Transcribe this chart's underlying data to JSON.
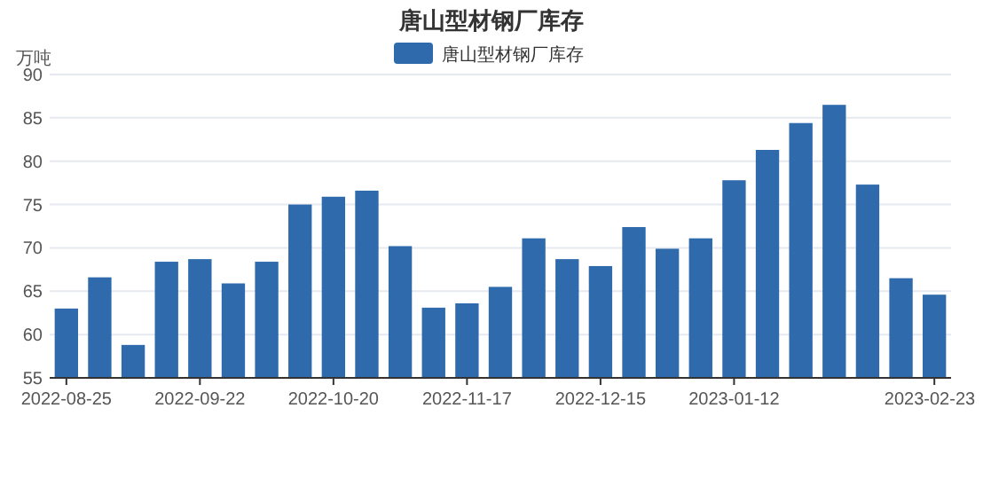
{
  "chart_data": {
    "type": "bar",
    "title": "唐山型材钢厂库存",
    "ylabel": "万吨",
    "categories": [
      "2022-08-25",
      null,
      null,
      null,
      "2022-09-22",
      null,
      null,
      null,
      "2022-10-20",
      null,
      null,
      null,
      "2022-11-17",
      null,
      null,
      null,
      "2022-12-15",
      null,
      null,
      null,
      "2023-01-12",
      null,
      null,
      null,
      null,
      null,
      "2023-02-23"
    ],
    "series": [
      {
        "name": "唐山型材钢厂库存",
        "color": "#2e6aac",
        "values": [
          63.0,
          66.6,
          58.8,
          68.4,
          68.7,
          65.9,
          68.4,
          75.0,
          75.9,
          76.6,
          70.2,
          63.1,
          63.6,
          65.5,
          71.1,
          68.7,
          67.9,
          72.4,
          69.9,
          71.1,
          77.8,
          81.3,
          84.4,
          86.5,
          77.3,
          66.5,
          64.6
        ]
      }
    ],
    "ylim": [
      55,
      90
    ],
    "yticks": [
      55,
      60,
      65,
      70,
      75,
      80,
      85,
      90
    ],
    "grid": "y",
    "legend": "top"
  }
}
